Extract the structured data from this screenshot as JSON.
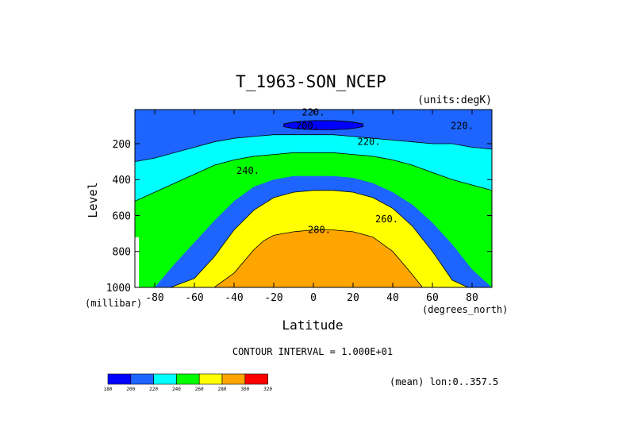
{
  "chart_data": {
    "type": "contour",
    "title": "T_1963-SON_NCEP",
    "units_label": "(units:degK)",
    "xlabel": "Latitude",
    "ylabel": "Level",
    "x_units": "(degrees_north)",
    "y_units": "(millibar)",
    "xlim": [
      -90,
      90
    ],
    "ylim": [
      1000,
      10
    ],
    "x_ticks": [
      -80,
      -60,
      -40,
      -20,
      0,
      20,
      40,
      60,
      80
    ],
    "y_ticks": [
      200,
      400,
      600,
      800,
      1000
    ],
    "contour_interval_text": "CONTOUR INTERVAL = 1.000E+01",
    "footer_text": "(mean) lon:0..357.5",
    "grid": false,
    "color_levels": [
      180,
      200,
      220,
      240,
      260,
      280,
      300,
      320
    ],
    "colors": [
      "#0000ff",
      "#1e64ff",
      "#00ffff",
      "#00ff00",
      "#ffff00",
      "#ffa500",
      "#ff0000"
    ],
    "contour_labels": [
      {
        "text": "220.",
        "lat": 0,
        "level": 25
      },
      {
        "text": "200.",
        "lat": -3,
        "level": 100
      },
      {
        "text": "220.",
        "lat": 75,
        "level": 100
      },
      {
        "text": "220.",
        "lat": 28,
        "level": 190
      },
      {
        "text": "240.",
        "lat": -33,
        "level": 350
      },
      {
        "text": "260.",
        "lat": 37,
        "level": 620
      },
      {
        "text": "280.",
        "lat": 3,
        "level": 680
      }
    ],
    "regions": [
      {
        "value": 210,
        "lat": [
          -90,
          -80,
          -70,
          -60,
          -50,
          -40,
          -30,
          -20,
          -10,
          0,
          10,
          20,
          30,
          40,
          50,
          60,
          70,
          80,
          90
        ],
        "top": [
          10,
          10,
          10,
          10,
          10,
          10,
          10,
          10,
          10,
          10,
          10,
          10,
          10,
          10,
          10,
          10,
          10,
          10,
          10
        ],
        "bottom": [
          300,
          280,
          250,
          220,
          190,
          170,
          160,
          150,
          150,
          150,
          150,
          160,
          170,
          180,
          190,
          200,
          200,
          220,
          230
        ]
      },
      {
        "value": 230,
        "lat": [
          -90,
          -80,
          -70,
          -60,
          -50,
          -40,
          -30,
          -20,
          -10,
          0,
          10,
          20,
          30,
          40,
          50,
          60,
          70,
          80,
          90
        ],
        "top": [
          300,
          280,
          250,
          220,
          190,
          170,
          160,
          150,
          150,
          150,
          150,
          160,
          170,
          180,
          190,
          200,
          200,
          220,
          230
        ],
        "bottom": [
          520,
          470,
          420,
          370,
          320,
          290,
          270,
          260,
          250,
          250,
          250,
          260,
          270,
          290,
          320,
          360,
          400,
          430,
          460
        ]
      },
      {
        "value": 250,
        "lat": [
          -90,
          -80,
          -70,
          -60,
          -50,
          -40,
          -30,
          -20,
          -10,
          0,
          10,
          20,
          30,
          40,
          50,
          60,
          70,
          80,
          90
        ],
        "top": [
          520,
          470,
          420,
          370,
          320,
          290,
          270,
          260,
          250,
          250,
          250,
          260,
          270,
          290,
          320,
          360,
          400,
          430,
          460
        ],
        "bottom": [
          1000,
          1000,
          870,
          750,
          630,
          520,
          440,
          400,
          380,
          380,
          380,
          390,
          420,
          470,
          540,
          640,
          760,
          900,
          1000
        ]
      },
      {
        "value": 270,
        "lat": [
          -72,
          -60,
          -50,
          -40,
          -30,
          -20,
          -10,
          0,
          10,
          20,
          30,
          40,
          50,
          60,
          70,
          78
        ],
        "top": [
          1000,
          950,
          830,
          680,
          570,
          500,
          470,
          460,
          460,
          470,
          500,
          560,
          660,
          800,
          960,
          1000
        ],
        "bottom": [
          1000,
          1000,
          1000,
          1000,
          1000,
          1000,
          1000,
          1000,
          1000,
          1000,
          1000,
          1000,
          1000,
          1000,
          1000,
          1000
        ]
      },
      {
        "value": 290,
        "lat": [
          -50,
          -40,
          -30,
          -25,
          -20,
          -10,
          0,
          10,
          20,
          30,
          40,
          50,
          55
        ],
        "top": [
          1000,
          920,
          790,
          740,
          710,
          690,
          680,
          680,
          690,
          720,
          800,
          930,
          1000
        ],
        "bottom": [
          1000,
          1000,
          1000,
          1000,
          1000,
          1000,
          1000,
          1000,
          1000,
          1000,
          1000,
          1000,
          1000
        ]
      },
      {
        "value": 190,
        "lat": [
          -15,
          -10,
          -5,
          0,
          5,
          10,
          15,
          20,
          25
        ],
        "top": [
          90,
          80,
          75,
          72,
          72,
          72,
          75,
          80,
          90
        ],
        "bottom": [
          105,
          115,
          120,
          122,
          122,
          122,
          120,
          115,
          105
        ]
      }
    ],
    "missing_region": {
      "lat_max": -88,
      "level_min": 720
    }
  }
}
